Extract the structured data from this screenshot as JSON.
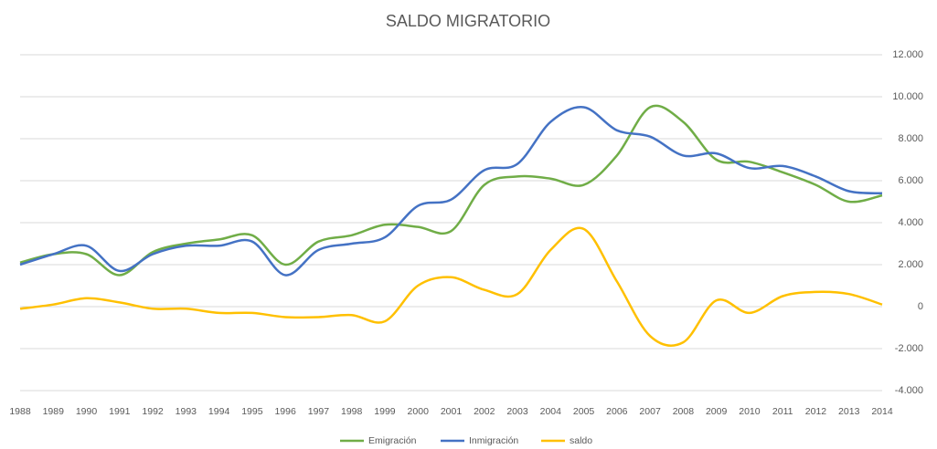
{
  "chart_data": {
    "type": "line",
    "title": "SALDO MIGRATORIO",
    "categories": [
      "1988",
      "1989",
      "1990",
      "1991",
      "1992",
      "1993",
      "1994",
      "1995",
      "1996",
      "1997",
      "1998",
      "1999",
      "2000",
      "2001",
      "2002",
      "2003",
      "2004",
      "2005",
      "2006",
      "2007",
      "2008",
      "2009",
      "2010",
      "2011",
      "2012",
      "2013",
      "2014"
    ],
    "series": [
      {
        "name": "Emigración",
        "color": "#70ad47",
        "values": [
          2100,
          2500,
          2500,
          1500,
          2600,
          3000,
          3200,
          3400,
          2000,
          3100,
          3400,
          3900,
          3800,
          3600,
          5800,
          6200,
          6100,
          5800,
          7200,
          9500,
          8800,
          7000,
          6900,
          6400,
          5800,
          5000,
          5300
        ]
      },
      {
        "name": "Inmigración",
        "color": "#4472c4",
        "values": [
          2000,
          2500,
          2900,
          1700,
          2500,
          2900,
          2900,
          3100,
          1500,
          2700,
          3000,
          3300,
          4800,
          5100,
          6500,
          6800,
          8800,
          9500,
          8400,
          8100,
          7200,
          7300,
          6600,
          6700,
          6200,
          5500,
          5400
        ]
      },
      {
        "name": "saldo",
        "color": "#ffc000",
        "values": [
          -100,
          100,
          400,
          200,
          -100,
          -100,
          -300,
          -300,
          -500,
          -500,
          -400,
          -700,
          1000,
          1400,
          800,
          600,
          2700,
          3700,
          1200,
          -1400,
          -1700,
          300,
          -300,
          500,
          700,
          600,
          100
        ]
      }
    ],
    "ylim": [
      -4000,
      12000
    ],
    "yticks": [
      {
        "value": -4000,
        "label": "-4.000"
      },
      {
        "value": -2000,
        "label": "-2.000"
      },
      0,
      {
        "value": 2000,
        "label": "2.000"
      },
      {
        "value": 4000,
        "label": "4.000"
      },
      {
        "value": 6000,
        "label": "6.000"
      },
      {
        "value": 8000,
        "label": "8.000"
      },
      {
        "value": 10000,
        "label": "10.000"
      },
      {
        "value": 12000,
        "label": "12.000"
      }
    ],
    "grid": true,
    "legend": "bottom"
  }
}
